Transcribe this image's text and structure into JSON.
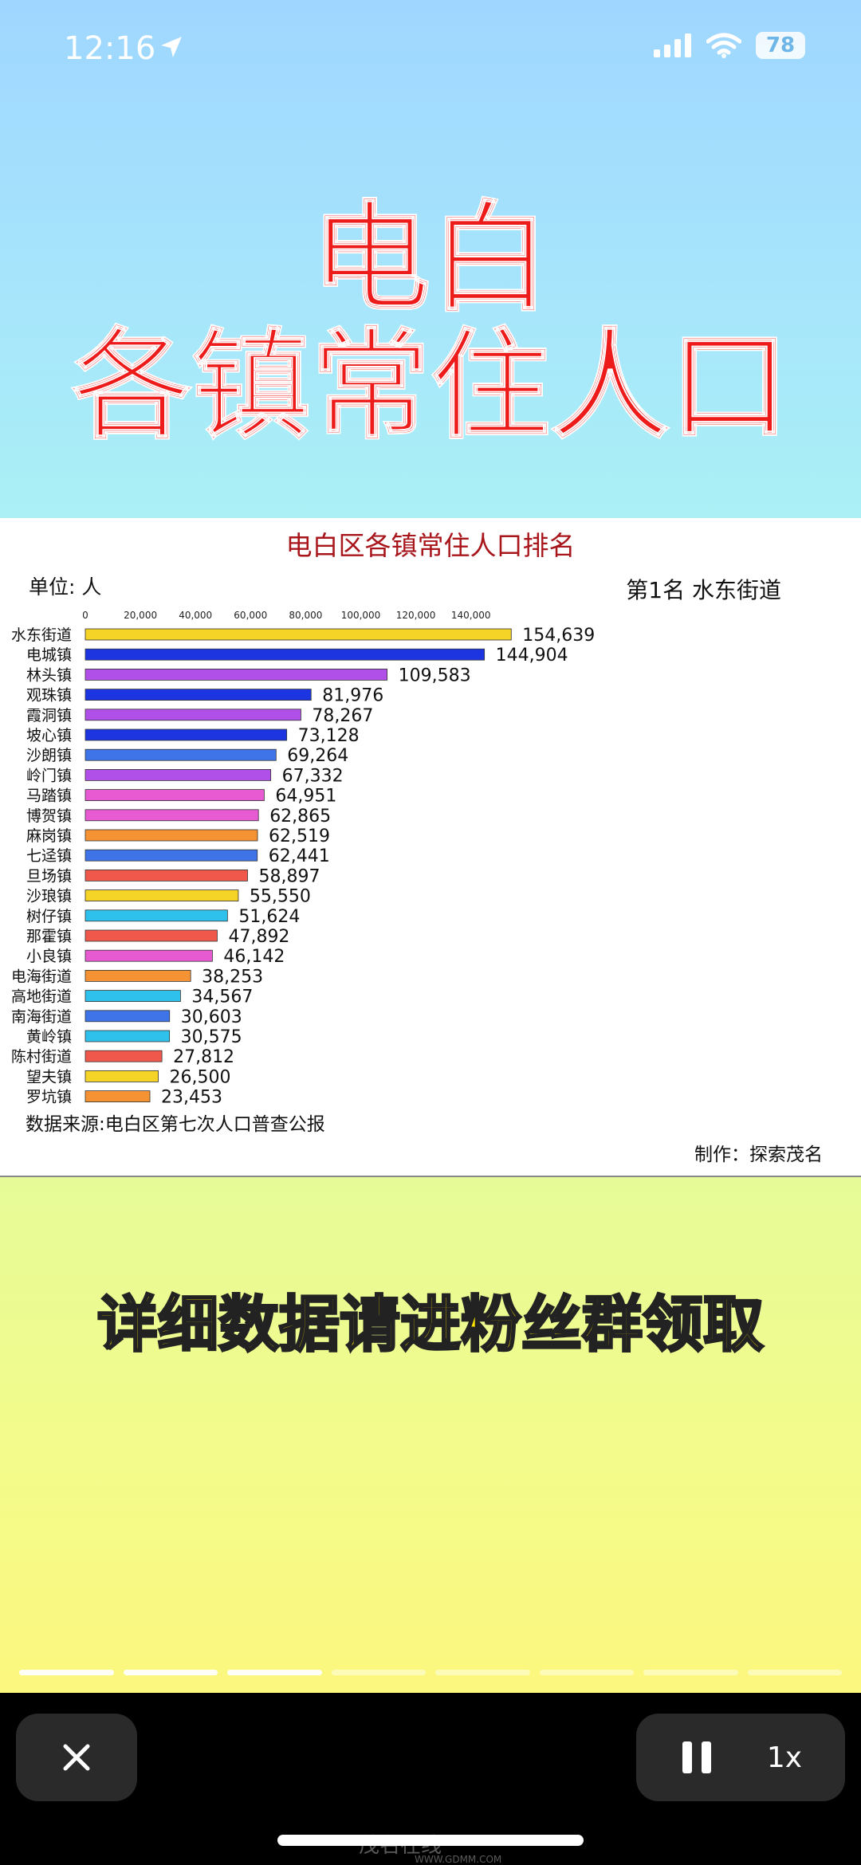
{
  "status_bar": {
    "time": "12:16",
    "battery": "78"
  },
  "headline": {
    "line1": "电白",
    "line2": "各镇常住人口"
  },
  "chart_data": {
    "type": "bar",
    "orientation": "horizontal",
    "title": "电白区各镇常住人口排名",
    "unit_label": "单位: 人",
    "rank_label": "第1名 水东街道",
    "xlim": [
      0,
      155000
    ],
    "ticks": [
      0,
      20000,
      40000,
      60000,
      80000,
      100000,
      120000,
      140000
    ],
    "tick_labels": [
      "0",
      "20,000",
      "40,000",
      "60,000",
      "80,000",
      "100,000",
      "120,000",
      "140,000"
    ],
    "categories": [
      "水东街道",
      "电城镇",
      "林头镇",
      "观珠镇",
      "霞洞镇",
      "坡心镇",
      "沙朗镇",
      "岭门镇",
      "马踏镇",
      "博贺镇",
      "麻岗镇",
      "七迳镇",
      "旦场镇",
      "沙琅镇",
      "树仔镇",
      "那霍镇",
      "小良镇",
      "电海街道",
      "高地街道",
      "南海街道",
      "黄岭镇",
      "陈村街道",
      "望夫镇",
      "罗坑镇"
    ],
    "values": [
      154639,
      144904,
      109583,
      81976,
      78267,
      73128,
      69264,
      67332,
      64951,
      62865,
      62519,
      62441,
      58897,
      55550,
      51624,
      47892,
      46142,
      38253,
      34567,
      30603,
      30575,
      27812,
      26500,
      23453
    ],
    "value_labels": [
      "154,639",
      "144,904",
      "109,583",
      "81,976",
      "78,267",
      "73,128",
      "69,264",
      "67,332",
      "64,951",
      "62,865",
      "62,519",
      "62,441",
      "58,897",
      "55,550",
      "51,624",
      "47,892",
      "46,142",
      "38,253",
      "34,567",
      "30,603",
      "30,575",
      "27,812",
      "26,500",
      "23,453"
    ],
    "colors": [
      "#f5d327",
      "#1c35e0",
      "#b050e8",
      "#1c35e0",
      "#b050e8",
      "#1c35e0",
      "#3f74e8",
      "#b050e8",
      "#e75ad2",
      "#e75ad2",
      "#f59233",
      "#3f74e8",
      "#f1584c",
      "#f5d327",
      "#2ec1ec",
      "#f1584c",
      "#e75ad2",
      "#f59233",
      "#2ec1ec",
      "#3f74e8",
      "#2ec1ec",
      "#f1584c",
      "#f5d327",
      "#f59233"
    ],
    "source": "数据来源:电白区第七次人口普查公报",
    "credit": "制作：探索茂名"
  },
  "banner": {
    "text": "详细数据请进粉丝群领取"
  },
  "controls": {
    "speed_label": "1x"
  },
  "watermark": {
    "text": "茂名在线",
    "sub": "WWW.GDMM.COM"
  }
}
